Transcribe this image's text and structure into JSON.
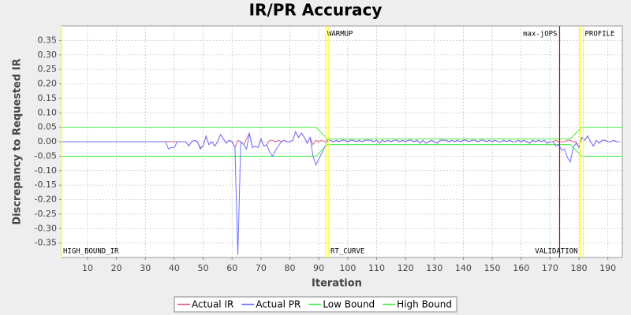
{
  "chart_data": {
    "type": "line",
    "title": "IR/PR Accuracy",
    "x_label": "Iteration",
    "y_label": "Discrepancy to Requested IR",
    "xlim": [
      1,
      195
    ],
    "ylim": [
      -0.4,
      0.4
    ],
    "xticks": [
      10,
      20,
      30,
      40,
      50,
      60,
      70,
      80,
      90,
      100,
      110,
      120,
      130,
      140,
      150,
      160,
      170,
      180,
      190
    ],
    "yticks": [
      0.35,
      {
        "value": 0.3,
        "label": "0.30"
      },
      0.25,
      {
        "value": 0.2,
        "label": "0.20"
      },
      0.15,
      {
        "value": 0.1,
        "label": "0.10"
      },
      0.05,
      {
        "value": 0,
        "label": "0.00"
      },
      -0.05,
      {
        "value": -0.1,
        "label": "-0.10"
      },
      -0.15,
      {
        "value": -0.2,
        "label": "-0.20"
      },
      -0.25,
      {
        "value": -0.3,
        "label": "-0.30"
      },
      -0.35
    ],
    "grid": true,
    "legend": "bottom",
    "markers": [
      {
        "label": "HIGH_BOUND_IR",
        "x": 1,
        "color": "#ffff00",
        "label_position": "bottom-right"
      },
      {
        "label": "WARMUP",
        "x": 92.4,
        "color": "#ffff00",
        "label_position": "top-right"
      },
      {
        "label": "RT_CURVE",
        "x": 93.5,
        "color": "#ffff00",
        "label_position": "bottom-right"
      },
      {
        "label": "max-jOPS",
        "x": 173.3,
        "color": "#cc0000",
        "label_position": "top-left"
      },
      {
        "label": "VALIDATION",
        "x": 180.4,
        "color": "#ffff00",
        "label_position": "bottom-left"
      },
      {
        "label": "PROFILE",
        "x": 181.5,
        "color": "#ffff00",
        "label_position": "top-right"
      }
    ],
    "series": [
      {
        "name": "Actual IR",
        "color": "#e0608a",
        "x": [
          1,
          35,
          36,
          37,
          38,
          39,
          40,
          41,
          42,
          43,
          44,
          45,
          46,
          47,
          48,
          49,
          50,
          51,
          52,
          53,
          54,
          55,
          56,
          57,
          58,
          59,
          60,
          61,
          62,
          63,
          64,
          65,
          66,
          67,
          68,
          69,
          70,
          71,
          72,
          73,
          74,
          75,
          76,
          77,
          78,
          79,
          80,
          81,
          82,
          83,
          84,
          85,
          86,
          87,
          88,
          89,
          90,
          91,
          92,
          93,
          94,
          95,
          96,
          97,
          98,
          99,
          100,
          101,
          102,
          103,
          104,
          105,
          106,
          107,
          108,
          109,
          110,
          111,
          112,
          113,
          114,
          115,
          116,
          117,
          118,
          119,
          120,
          121,
          122,
          123,
          124,
          125,
          126,
          127,
          128,
          129,
          130,
          131,
          132,
          133,
          134,
          135,
          136,
          137,
          138,
          139,
          140,
          141,
          142,
          143,
          144,
          145,
          146,
          147,
          148,
          149,
          150,
          151,
          152,
          153,
          154,
          155,
          156,
          157,
          158,
          159,
          160,
          161,
          162,
          163,
          164,
          165,
          166,
          167,
          168,
          169,
          170,
          171,
          172,
          173,
          174,
          175,
          176,
          177,
          178,
          179,
          180,
          181,
          182,
          183,
          184,
          185,
          186,
          187,
          188,
          189,
          190,
          191,
          192,
          193,
          194
        ],
        "values": [
          0,
          0,
          0,
          0,
          0,
          0,
          0,
          0,
          0,
          0,
          0,
          -0.015,
          0,
          0.005,
          0,
          -0.02,
          -0.015,
          0.02,
          -0.01,
          0,
          -0.015,
          0,
          0.025,
          0.01,
          -0.005,
          0.005,
          0,
          -0.02,
          0.005,
          0,
          -0.01,
          0.01,
          0.03,
          -0.02,
          -0.015,
          -0.02,
          0.01,
          -0.015,
          -0.01,
          0.005,
          0.005,
          0,
          0.005,
          0,
          0.005,
          0,
          0,
          0.005,
          0.035,
          0.015,
          0.03,
          0.015,
          -0.005,
          0.015,
          -0.01,
          0.005,
          0,
          0.005,
          0,
          0.005,
          0.005,
          0,
          0.005,
          0,
          0.005,
          0.005,
          0,
          0.005,
          0.005,
          0,
          0.005,
          0,
          0.005,
          0.005,
          0.005,
          0,
          0.005,
          -0.005,
          0.005,
          0,
          0.005,
          0,
          0.005,
          0.005,
          0,
          0.005,
          0,
          0.005,
          0.005,
          0,
          0.005,
          -0.005,
          0.005,
          -0.005,
          0,
          0.005,
          0,
          -0.005,
          0.005,
          0.005,
          0.005,
          0,
          0.005,
          0,
          0.005,
          0,
          0.005,
          0.005,
          0,
          0.005,
          0.005,
          0,
          0.005,
          0.005,
          0,
          0.005,
          0,
          0.005,
          0,
          0,
          0.005,
          0,
          0.005,
          0,
          0,
          0.005,
          0,
          0.005,
          0,
          -0.005,
          0.005,
          0,
          0.005,
          0,
          0.005,
          -0.005,
          0,
          0,
          0.005,
          0,
          0,
          0,
          0.005,
          0.005,
          0,
          0,
          -0.02,
          0.015,
          0.005,
          0.02,
          0,
          -0.015,
          0.005,
          -0.005,
          0.005,
          0.005,
          0,
          0,
          0.005,
          0,
          0
        ]
      },
      {
        "name": "Actual PR",
        "color": "#7070ff",
        "x": [
          1,
          35,
          36,
          37,
          38,
          39,
          40,
          41,
          42,
          43,
          44,
          45,
          46,
          47,
          48,
          49,
          50,
          51,
          52,
          53,
          54,
          55,
          56,
          57,
          58,
          59,
          60,
          61,
          62,
          63,
          64,
          65,
          66,
          67,
          68,
          69,
          70,
          71,
          72,
          73,
          74,
          75,
          76,
          77,
          78,
          79,
          80,
          81,
          82,
          83,
          84,
          85,
          86,
          87,
          88,
          89,
          90,
          91,
          92,
          93,
          94,
          95,
          96,
          97,
          98,
          99,
          100,
          101,
          102,
          103,
          104,
          105,
          106,
          107,
          108,
          109,
          110,
          111,
          112,
          113,
          114,
          115,
          116,
          117,
          118,
          119,
          120,
          121,
          122,
          123,
          124,
          125,
          126,
          127,
          128,
          129,
          130,
          131,
          132,
          133,
          134,
          135,
          136,
          137,
          138,
          139,
          140,
          141,
          142,
          143,
          144,
          145,
          146,
          147,
          148,
          149,
          150,
          151,
          152,
          153,
          154,
          155,
          156,
          157,
          158,
          159,
          160,
          161,
          162,
          163,
          164,
          165,
          166,
          167,
          168,
          169,
          170,
          171,
          172,
          173,
          174,
          175,
          176,
          177,
          178,
          179,
          180,
          181,
          182,
          183,
          184,
          185,
          186,
          187,
          188,
          189,
          190,
          191,
          192,
          193,
          194
        ],
        "values": [
          0,
          0,
          0,
          0,
          -0.025,
          -0.02,
          -0.02,
          0,
          0,
          0,
          0,
          -0.015,
          0,
          0.005,
          0,
          -0.025,
          -0.015,
          0.02,
          -0.01,
          0,
          -0.015,
          0,
          0.025,
          0.01,
          -0.005,
          0.005,
          0,
          -0.02,
          -0.39,
          0,
          -0.01,
          -0.025,
          0.03,
          -0.02,
          -0.015,
          -0.02,
          0.01,
          -0.015,
          -0.01,
          -0.035,
          -0.05,
          -0.03,
          -0.015,
          0,
          0.005,
          0,
          0,
          0.005,
          0.035,
          0.015,
          0.03,
          0.015,
          -0.005,
          0.015,
          -0.05,
          -0.08,
          -0.06,
          -0.04,
          -0.02,
          0.005,
          0.005,
          0,
          0.005,
          0,
          0.005,
          0.005,
          0,
          0.005,
          0.005,
          0,
          0.005,
          0,
          0.005,
          0.005,
          0.005,
          0,
          0.005,
          -0.005,
          0.005,
          0,
          0.005,
          0,
          0.005,
          0.005,
          0,
          0.005,
          0,
          0.005,
          0.005,
          0,
          0.005,
          -0.005,
          0.005,
          -0.005,
          0,
          0.005,
          0,
          -0.005,
          0.005,
          0.005,
          0.005,
          0,
          0.005,
          0,
          0.005,
          0,
          0.005,
          0.005,
          0,
          0.005,
          0.005,
          0,
          0.005,
          0.005,
          0,
          0.005,
          0,
          0.005,
          0,
          0,
          0.005,
          0,
          0.005,
          0,
          0,
          0.005,
          0,
          0.005,
          0,
          -0.005,
          0.005,
          0,
          0.005,
          0,
          0.005,
          -0.005,
          0,
          0,
          -0.015,
          -0.01,
          -0.03,
          -0.025,
          -0.055,
          -0.07,
          -0.02,
          -0.005,
          -0.02,
          0.015,
          0.005,
          0.02,
          0,
          -0.015,
          0.005,
          -0.005,
          0.005,
          0.005,
          0,
          0,
          0.005,
          0,
          0
        ]
      },
      {
        "name": "Low Bound",
        "color": "#44ee44",
        "x": [
          1,
          89,
          93,
          177,
          181,
          195
        ],
        "values": [
          -0.05,
          -0.05,
          -0.01,
          -0.01,
          -0.05,
          -0.05
        ]
      },
      {
        "name": "High Bound",
        "color": "#44ee44",
        "x": [
          1,
          89,
          93,
          177,
          181,
          195
        ],
        "values": [
          0.05,
          0.05,
          0.01,
          0.01,
          0.05,
          0.05
        ]
      }
    ]
  }
}
